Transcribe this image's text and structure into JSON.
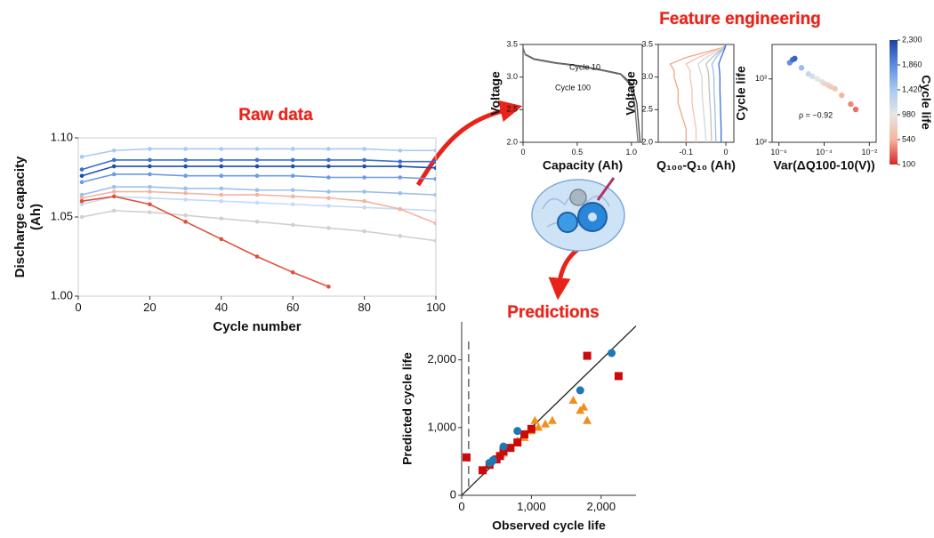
{
  "heading": "Feature engineering",
  "chart_data": [
    {
      "type": "line",
      "title": "Raw data",
      "xlabel": "Cycle number",
      "ylabel": [
        "Discharge capacity",
        "(Ah)"
      ],
      "x": [
        1,
        10,
        20,
        30,
        40,
        50,
        60,
        70,
        80,
        90,
        100
      ],
      "xlim": [
        0,
        100
      ],
      "xticks": [
        0,
        20,
        40,
        60,
        80,
        100
      ],
      "ylim": [
        1.0,
        1.1
      ],
      "yticks": [
        {
          "value": 1.0,
          "label": "1.00"
        },
        {
          "value": 1.05,
          "label": "1.05"
        },
        {
          "value": 1.1,
          "label": "1.10"
        }
      ],
      "markers": true,
      "series": [
        {
          "color": "#a9c9ef",
          "values": [
            1.088,
            1.092,
            1.093,
            1.093,
            1.093,
            1.093,
            1.093,
            1.093,
            1.093,
            1.092,
            1.092
          ]
        },
        {
          "color": "#c5daf5",
          "values": [
            1.058,
            1.063,
            1.062,
            1.061,
            1.06,
            1.059,
            1.058,
            1.057,
            1.056,
            1.055,
            1.054
          ]
        },
        {
          "color": "#d0d0d0",
          "values": [
            1.05,
            1.054,
            1.053,
            1.051,
            1.049,
            1.047,
            1.045,
            1.043,
            1.041,
            1.038,
            1.035
          ]
        },
        {
          "color": "#9bbfee",
          "values": [
            1.064,
            1.069,
            1.069,
            1.068,
            1.068,
            1.067,
            1.067,
            1.066,
            1.066,
            1.065,
            1.064
          ]
        },
        {
          "color": "#6c9be8",
          "values": [
            1.072,
            1.077,
            1.077,
            1.076,
            1.076,
            1.076,
            1.076,
            1.075,
            1.075,
            1.075,
            1.074
          ]
        },
        {
          "color": "#3a6fd8",
          "values": [
            1.08,
            1.086,
            1.086,
            1.086,
            1.086,
            1.086,
            1.086,
            1.086,
            1.086,
            1.085,
            1.085
          ]
        },
        {
          "color": "#1f4fb5",
          "values": [
            1.076,
            1.082,
            1.082,
            1.082,
            1.082,
            1.082,
            1.082,
            1.082,
            1.082,
            1.082,
            1.081
          ]
        },
        {
          "color": "#f4b3a0",
          "values": [
            1.062,
            1.066,
            1.066,
            1.065,
            1.064,
            1.064,
            1.063,
            1.062,
            1.06,
            1.055,
            1.046
          ]
        },
        {
          "color": "#e0503a",
          "values": [
            1.06,
            1.063,
            1.058,
            1.047,
            1.036,
            1.025,
            1.015,
            1.006,
            null,
            null,
            null
          ]
        }
      ]
    },
    {
      "type": "line",
      "xlabel": "Capacity (Ah)",
      "ylabel": "Voltage",
      "xlim": [
        0,
        1.1
      ],
      "xticks": [
        0,
        0.5,
        {
          "value": 1.0,
          "label": "1.0"
        }
      ],
      "ylim": [
        2.0,
        3.5
      ],
      "yticks": [
        {
          "value": 2.0,
          "label": "2.0"
        },
        2.5,
        {
          "value": 3.0,
          "label": "3.0"
        },
        3.5
      ],
      "series": [
        {
          "name": "Cycle 10",
          "color": "#444444",
          "x": [
            0,
            0.02,
            0.1,
            0.3,
            0.5,
            0.7,
            0.9,
            1.0,
            1.05,
            1.07,
            1.08
          ],
          "values": [
            3.45,
            3.35,
            3.28,
            3.22,
            3.18,
            3.12,
            3.05,
            2.9,
            2.6,
            2.2,
            2.0
          ]
        },
        {
          "name": "Cycle 100",
          "color": "#777777",
          "x": [
            0,
            0.02,
            0.1,
            0.3,
            0.5,
            0.7,
            0.9,
            0.98,
            1.03,
            1.05,
            1.06
          ],
          "values": [
            3.45,
            3.34,
            3.27,
            3.21,
            3.17,
            3.11,
            3.04,
            2.9,
            2.6,
            2.2,
            2.0
          ]
        }
      ]
    },
    {
      "type": "line",
      "xlabel": "Q₁₀₀-Q₁₀ (Ah)",
      "ylabel": "Voltage",
      "xlim": [
        -0.17,
        0.02
      ],
      "xticks": [
        {
          "value": -0.1,
          "label": "-0.1"
        },
        0
      ],
      "ylim": [
        2.0,
        3.5
      ],
      "yticks": [
        {
          "value": 2.0,
          "label": "2.0"
        },
        2.5,
        {
          "value": 3.0,
          "label": "3.0"
        },
        3.5
      ],
      "series": [
        {
          "color": "#f4a582",
          "x": [
            0,
            -0.01,
            -0.1,
            -0.14,
            -0.13,
            -0.13,
            -0.12,
            -0.12,
            -0.11,
            -0.1,
            -0.1
          ],
          "values": [
            3.5,
            3.45,
            3.3,
            3.2,
            3.1,
            3.0,
            2.8,
            2.6,
            2.4,
            2.2,
            2.0
          ]
        },
        {
          "color": "#f6c3b0",
          "x": [
            0,
            -0.01,
            -0.07,
            -0.1,
            -0.09,
            -0.09,
            -0.085,
            -0.085,
            -0.08,
            -0.075,
            -0.075
          ],
          "values": [
            3.5,
            3.45,
            3.3,
            3.2,
            3.1,
            3.0,
            2.8,
            2.6,
            2.4,
            2.2,
            2.0
          ]
        },
        {
          "color": "#d6d6d6",
          "x": [
            0,
            -0.005,
            -0.05,
            -0.07,
            -0.065,
            -0.06,
            -0.06,
            -0.058,
            -0.055,
            -0.052,
            -0.05
          ],
          "values": [
            3.5,
            3.45,
            3.3,
            3.2,
            3.1,
            3.0,
            2.8,
            2.6,
            2.4,
            2.2,
            2.0
          ]
        },
        {
          "color": "#c0c0c0",
          "x": [
            0,
            -0.005,
            -0.035,
            -0.05,
            -0.045,
            -0.043,
            -0.042,
            -0.04,
            -0.038,
            -0.037,
            -0.036
          ],
          "values": [
            3.5,
            3.45,
            3.3,
            3.2,
            3.1,
            3.0,
            2.8,
            2.6,
            2.4,
            2.2,
            2.0
          ]
        },
        {
          "color": "#9bbfee",
          "x": [
            0,
            -0.004,
            -0.025,
            -0.035,
            -0.032,
            -0.03,
            -0.03,
            -0.028,
            -0.027,
            -0.026,
            -0.025
          ],
          "values": [
            3.5,
            3.45,
            3.3,
            3.2,
            3.1,
            3.0,
            2.8,
            2.6,
            2.4,
            2.2,
            2.0
          ]
        },
        {
          "color": "#3a6fd8",
          "x": [
            0,
            -0.002,
            -0.012,
            -0.018,
            -0.016,
            -0.015,
            -0.015,
            -0.014,
            -0.013,
            -0.012,
            -0.012
          ],
          "values": [
            3.5,
            3.45,
            3.3,
            3.2,
            3.1,
            3.0,
            2.8,
            2.6,
            2.4,
            2.2,
            2.0
          ]
        }
      ]
    },
    {
      "type": "scatter",
      "xlabel": "Var(ΔQ100-10(V))",
      "ylabel": "Cycle life",
      "log": true,
      "annotation": "ρ = −0.92",
      "xlim": [
        5e-07,
        0.02
      ],
      "xticks": [
        {
          "value": 1e-06,
          "label": "10⁻⁶"
        },
        {
          "value": 0.0001,
          "label": "10⁻⁴"
        },
        {
          "value": 0.01,
          "label": "10⁻²"
        }
      ],
      "ylim": [
        100,
        3500
      ],
      "yticks": [
        {
          "value": 100,
          "label": "10²"
        },
        {
          "value": 1000,
          "label": "10³"
        }
      ],
      "x": [
        3e-06,
        4e-06,
        5e-06,
        1e-05,
        2e-05,
        3e-05,
        5e-05,
        8e-05,
        0.0001,
        0.00015,
        0.0002,
        0.0003,
        0.0006,
        0.0015,
        0.0025
      ],
      "values": [
        1800,
        2000,
        2100,
        1500,
        1200,
        1100,
        1000,
        900,
        850,
        800,
        750,
        700,
        550,
        400,
        330
      ],
      "colorbar": {
        "label": "Cycle life",
        "lim": [
          100,
          2300
        ],
        "colors": [
          "#d62728",
          "#f6b49e",
          "#e6e6e6",
          "#a9c9ef",
          "#5a8de0",
          "#1f3fa8"
        ],
        "ticks": [
          {
            "value": 2300,
            "label": "2,300"
          },
          {
            "value": 1860,
            "label": "1,860"
          },
          {
            "value": 1420,
            "label": "1,420"
          },
          980,
          540,
          100
        ]
      }
    },
    {
      "type": "scatter",
      "title": "Predictions",
      "xlabel": "Observed cycle life",
      "ylabel": "Predicted cycle life",
      "xlim": [
        0,
        2500
      ],
      "xticks": [
        0,
        {
          "value": 1000,
          "label": "1,000"
        },
        {
          "value": 2000,
          "label": "2,000"
        }
      ],
      "ylim": [
        0,
        2560
      ],
      "yticks": [
        0,
        {
          "value": 1000,
          "label": "1,000"
        },
        {
          "value": 2000,
          "label": "2,000"
        }
      ],
      "vline": 100,
      "diagonal": true,
      "series": [
        {
          "marker": "triangle",
          "color": "#f28e1c",
          "x": [
            500,
            600,
            700,
            800,
            900,
            1000,
            1050,
            1100,
            1200,
            1300,
            1600,
            1700,
            1750,
            1800
          ],
          "values": [
            540,
            620,
            700,
            800,
            850,
            950,
            1100,
            1000,
            1050,
            1100,
            1400,
            1250,
            1300,
            1100
          ]
        },
        {
          "marker": "square",
          "color": "#cc0a0a",
          "x": [
            70,
            300,
            400,
            500,
            550,
            600,
            700,
            800,
            900,
            1000,
            1800,
            2250
          ],
          "values": [
            560,
            370,
            450,
            530,
            580,
            650,
            700,
            780,
            900,
            980,
            2060,
            1760
          ]
        },
        {
          "marker": "circle",
          "color": "#1f77b4",
          "x": [
            400,
            450,
            600,
            800,
            1700,
            2150
          ],
          "values": [
            480,
            520,
            720,
            950,
            1550,
            2100
          ]
        }
      ]
    }
  ]
}
